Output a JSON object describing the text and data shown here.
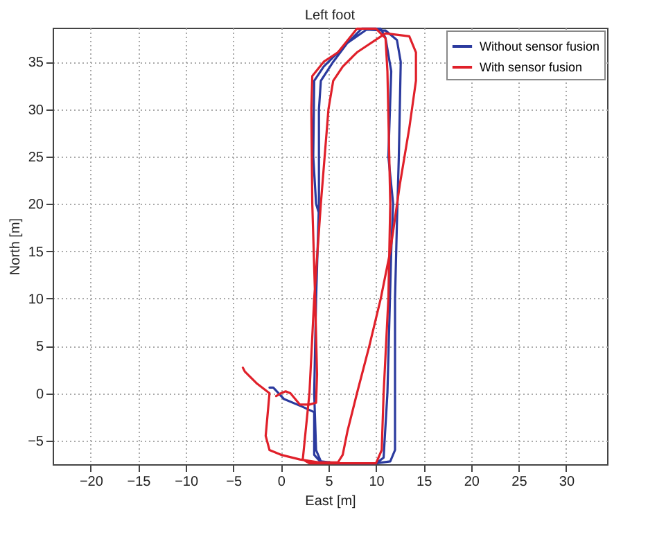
{
  "chart_data": {
    "type": "line",
    "title": "Left foot",
    "xlabel": "East [m]",
    "ylabel": "North [m]",
    "xlim": [
      -24,
      34.3
    ],
    "ylim": [
      -7.5,
      38.6
    ],
    "xticks": [
      -20,
      -15,
      -10,
      -5,
      0,
      5,
      10,
      15,
      20,
      25,
      30
    ],
    "yticks": [
      -5,
      0,
      5,
      10,
      15,
      20,
      25,
      30,
      35
    ],
    "grid": true,
    "legend": "top right",
    "marker": "none",
    "line_style": "solid",
    "series": [
      {
        "name": "Without sensor fusion",
        "color": "#2b3a9e",
        "x": [
          -1.2,
          -0.8,
          0.3,
          2.2,
          3.5,
          3.5,
          4.2,
          6,
          10,
          11.5,
          12,
          12,
          12.2,
          12.4,
          12.6,
          12.2,
          11,
          9,
          7,
          5.5,
          4.2,
          4,
          4,
          3.7,
          3.5,
          3.7,
          4.2,
          6,
          10,
          10.8,
          11.2,
          11.6,
          11.8,
          11.3,
          11.6,
          11,
          10.5,
          8.5,
          6,
          4.5,
          3.5,
          3.4,
          3.7,
          4
        ],
        "values": [
          0.6,
          0.6,
          -0.6,
          -1.4,
          -2,
          -6.5,
          -7.3,
          -7.4,
          -7.4,
          -7.2,
          -6,
          10,
          18,
          25,
          35,
          37.3,
          38.3,
          38.4,
          37,
          35,
          33,
          30,
          20,
          10,
          0,
          -6,
          -7.2,
          -7.4,
          -7.4,
          -6.8,
          0,
          15,
          20,
          25,
          34,
          37.5,
          38.5,
          38.5,
          36,
          34.5,
          33,
          25,
          20,
          19
        ]
      },
      {
        "name": "With sensor fusion",
        "color": "#e0202a",
        "x": [
          -4,
          -3.8,
          -2.5,
          -1.2,
          -1.6,
          -1.2,
          0,
          2,
          4,
          6,
          6.5,
          7,
          8,
          9.3,
          10.5,
          11.5,
          12.5,
          13.5,
          14.2,
          14.2,
          13.5,
          11,
          8,
          6.5,
          5.5,
          5,
          4.2,
          3.5,
          3,
          2.5,
          2.3,
          3,
          6,
          10,
          10.6,
          10.8,
          11.3,
          11.5,
          11.2,
          11,
          10,
          8,
          6,
          4.5,
          3.3,
          3.2,
          3.3,
          3.6,
          3.8,
          3.7,
          3,
          2,
          1,
          0.5,
          0,
          -0.5
        ],
        "values": [
          2.7,
          2.3,
          1,
          0,
          -4.5,
          -6,
          -6.5,
          -7,
          -7.3,
          -7.3,
          -6.5,
          -4,
          0,
          5,
          10,
          15,
          22,
          28,
          33,
          36,
          37.7,
          38,
          36,
          34.5,
          33,
          30,
          20,
          10,
          0,
          -5,
          -7,
          -7.4,
          -7.4,
          -7.4,
          -6,
          0,
          10,
          20,
          34,
          37.5,
          38.5,
          38.5,
          36,
          35,
          33.5,
          30,
          20,
          10,
          2,
          -1,
          -1.2,
          -1.2,
          0,
          0.2,
          0,
          -0.3
        ]
      }
    ]
  }
}
